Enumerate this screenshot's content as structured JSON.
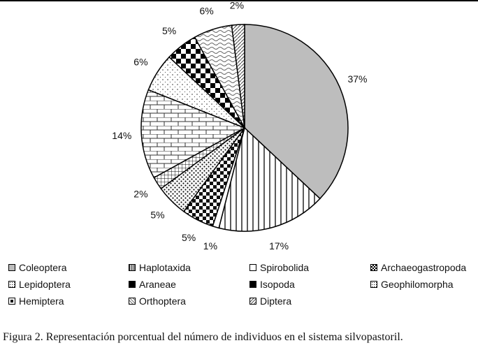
{
  "chart_data": {
    "type": "pie",
    "slices": [
      {
        "label": "Coleoptera",
        "value": 37,
        "display": "37%",
        "pattern": "gray"
      },
      {
        "label": "Haplotaxida",
        "value": 17,
        "display": "17%",
        "pattern": "vlines"
      },
      {
        "label": "Spirobolida",
        "value": 1,
        "display": "1%",
        "pattern": "white"
      },
      {
        "label": "Archaeogastropoda",
        "value": 5,
        "display": "5%",
        "pattern": "checker"
      },
      {
        "label": "Lepidoptera",
        "value": 5,
        "display": "5%",
        "pattern": "dots"
      },
      {
        "label": "Araneae",
        "value": 2,
        "display": "2%",
        "pattern": "grid"
      },
      {
        "label": "Isopoda",
        "value": 14,
        "display": "14%",
        "pattern": "bricks"
      },
      {
        "label": "Geophilomorpha",
        "value": 6,
        "display": "6%",
        "pattern": "sparse"
      },
      {
        "label": "Hemiptera",
        "value": 5,
        "display": "5%",
        "pattern": "bigchecker"
      },
      {
        "label": "Orthoptera",
        "value": 6,
        "display": "6%",
        "pattern": "waves"
      },
      {
        "label": "Diptera",
        "value": 2,
        "display": "2%",
        "pattern": "diag"
      }
    ],
    "legend_placement": "bottom"
  },
  "caption": "Figura 2. Representación porcentual del número de individuos en el sistema silvopastoril.",
  "colors": {
    "gray": "#bdbdbd",
    "ink": "#000000"
  }
}
